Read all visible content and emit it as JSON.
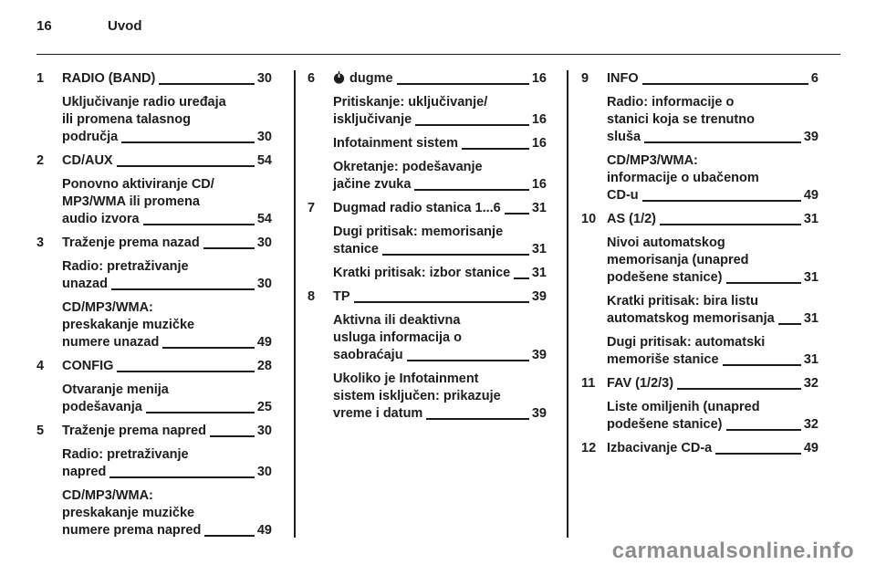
{
  "page": {
    "number": "16",
    "section_title": "Uvod",
    "watermark": "carmanualsonline.info"
  },
  "colors": {
    "text": "#1d1d1f",
    "watermark": "#8d8d8d"
  },
  "toc": {
    "columns": [
      {
        "entries": [
          {
            "num": "1",
            "lines": [
              {
                "text": "RADIO (BAND)",
                "page": "30"
              }
            ]
          },
          {
            "lines": [
              {
                "text": "Uključivanje radio uređaja"
              },
              {
                "text": "ili promena talasnog"
              },
              {
                "text": "područja",
                "page": "30"
              }
            ]
          },
          {
            "num": "2",
            "lines": [
              {
                "text": "CD/AUX",
                "page": "54"
              }
            ]
          },
          {
            "lines": [
              {
                "text": "Ponovno aktiviranje CD/"
              },
              {
                "text": "MP3/WMA ili promena"
              },
              {
                "text": "audio izvora",
                "page": "54"
              }
            ]
          },
          {
            "num": "3",
            "lines": [
              {
                "text": "Traženje prema nazad",
                "page": "30"
              }
            ]
          },
          {
            "lines": [
              {
                "text": "Radio: pretraživanje"
              },
              {
                "text": "unazad",
                "page": "30"
              }
            ]
          },
          {
            "lines": [
              {
                "text": "CD/MP3/WMA:"
              },
              {
                "text": "preskakanje muzičke"
              },
              {
                "text": "numere unazad",
                "page": "49"
              }
            ]
          },
          {
            "num": "4",
            "lines": [
              {
                "text": "CONFIG",
                "page": "28"
              }
            ]
          },
          {
            "lines": [
              {
                "text": "Otvaranje menija"
              },
              {
                "text": "podešavanja",
                "page": "25"
              }
            ]
          },
          {
            "num": "5",
            "lines": [
              {
                "text": "Traženje prema napred",
                "page": "30"
              }
            ]
          },
          {
            "lines": [
              {
                "text": "Radio: pretraživanje"
              },
              {
                "text": "napred",
                "page": "30"
              }
            ]
          },
          {
            "lines": [
              {
                "text": "CD/MP3/WMA:"
              },
              {
                "text": "preskakanje muzičke"
              },
              {
                "text": "numere prema napred",
                "page": "49"
              }
            ]
          }
        ]
      },
      {
        "entries": [
          {
            "num": "6",
            "lines": [
              {
                "icon": "power-icon",
                "text": "dugme",
                "page": "16"
              }
            ]
          },
          {
            "lines": [
              {
                "text": "Pritiskanje: uključivanje/"
              },
              {
                "text": "isključivanje",
                "page": "16"
              }
            ]
          },
          {
            "lines": [
              {
                "text": "Infotainment sistem",
                "page": "16"
              }
            ]
          },
          {
            "lines": [
              {
                "text": "Okretanje: podešavanje"
              },
              {
                "text": "jačine zvuka",
                "page": "16"
              }
            ]
          },
          {
            "num": "7",
            "lines": [
              {
                "text": "Dugmad radio stanica 1...6",
                "page": "31"
              }
            ]
          },
          {
            "lines": [
              {
                "text": "Dugi pritisak: memorisanje"
              },
              {
                "text": "stanice",
                "page": "31"
              }
            ]
          },
          {
            "lines": [
              {
                "text": "Kratki pritisak: izbor stanice",
                "page": "31"
              }
            ]
          },
          {
            "num": "8",
            "lines": [
              {
                "text": "TP",
                "page": "39"
              }
            ]
          },
          {
            "lines": [
              {
                "text": "Aktivna ili deaktivna"
              },
              {
                "text": "usluga informacija o"
              },
              {
                "text": "saobraćaju",
                "page": "39"
              }
            ]
          },
          {
            "lines": [
              {
                "text": "Ukoliko je Infotainment"
              },
              {
                "text": "sistem isključen: prikazuje"
              },
              {
                "text": "vreme i datum",
                "page": "39"
              }
            ]
          }
        ]
      },
      {
        "entries": [
          {
            "num": "9",
            "lines": [
              {
                "text": "INFO",
                "page": "6"
              }
            ]
          },
          {
            "lines": [
              {
                "text": "Radio: informacije o"
              },
              {
                "text": "stanici koja se trenutno"
              },
              {
                "text": "sluša",
                "page": "39"
              }
            ]
          },
          {
            "lines": [
              {
                "text": "CD/MP3/WMA:"
              },
              {
                "text": "informacije o ubačenom"
              },
              {
                "text": "CD-u",
                "page": "49"
              }
            ]
          },
          {
            "num": "10",
            "lines": [
              {
                "text": "AS (1/2)",
                "page": "31"
              }
            ]
          },
          {
            "lines": [
              {
                "text": "Nivoi automatskog"
              },
              {
                "text": "memorisanja (unapred"
              },
              {
                "text": "podešene stanice)",
                "page": "31"
              }
            ]
          },
          {
            "lines": [
              {
                "text": "Kratki pritisak: bira listu"
              },
              {
                "text": "automatskog memorisanja",
                "page": "31"
              }
            ]
          },
          {
            "lines": [
              {
                "text": "Dugi pritisak: automatski"
              },
              {
                "text": "memoriše stanice",
                "page": "31"
              }
            ]
          },
          {
            "num": "11",
            "lines": [
              {
                "text": "FAV (1/2/3)",
                "page": "32"
              }
            ]
          },
          {
            "lines": [
              {
                "text": "Liste omiljenih (unapred"
              },
              {
                "text": "podešene stanice)",
                "page": "32"
              }
            ]
          },
          {
            "num": "12",
            "lines": [
              {
                "text": "Izbacivanje CD-a",
                "page": "49"
              }
            ]
          }
        ]
      }
    ]
  }
}
